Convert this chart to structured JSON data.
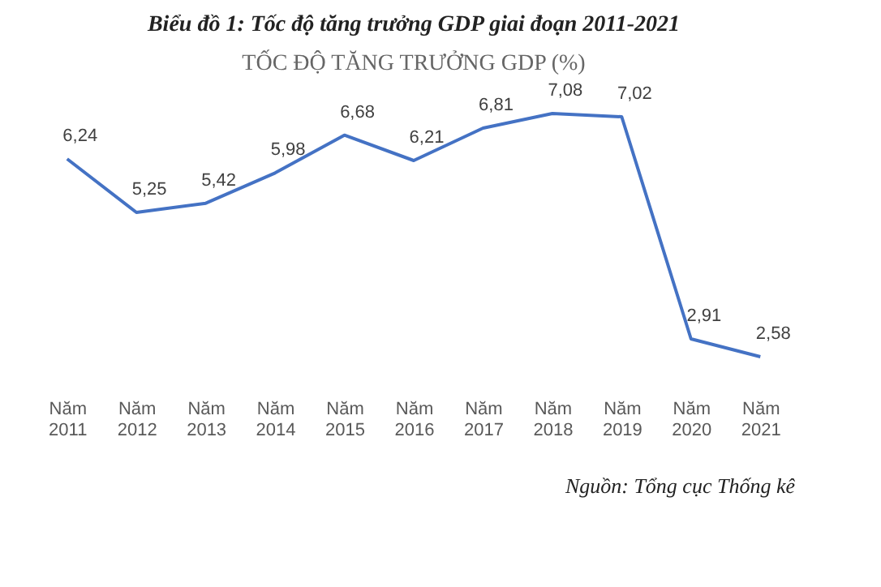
{
  "chart_data": {
    "type": "line",
    "title": "Biểu đồ 1: Tốc độ tăng trưởng GDP giai đoạn 2011-2021",
    "subtitle": "TỐC ĐỘ TĂNG TRƯỞNG GDP (%)",
    "categories": [
      "Năm 2011",
      "Năm 2012",
      "Năm 2013",
      "Năm 2014",
      "Năm 2015",
      "Năm 2016",
      "Năm 2017",
      "Năm 2018",
      "Năm 2019",
      "Năm 2020",
      "Năm 2021"
    ],
    "series": [
      {
        "color": "#4472c4",
        "values": [
          6.24,
          5.25,
          5.42,
          5.98,
          6.68,
          6.21,
          6.81,
          7.08,
          7.02,
          2.91,
          2.58
        ],
        "value_labels": [
          "6,24",
          "5,25",
          "5,42",
          "5,98",
          "6,68",
          "6,21",
          "6,81",
          "7,08",
          "7,02",
          "2,91",
          "2,58"
        ]
      }
    ],
    "tick_labels": "x",
    "grid": false,
    "marker": "none",
    "line_style": "solid",
    "annotations": [
      "Nguồn: Tổng cục Thống kê"
    ]
  }
}
